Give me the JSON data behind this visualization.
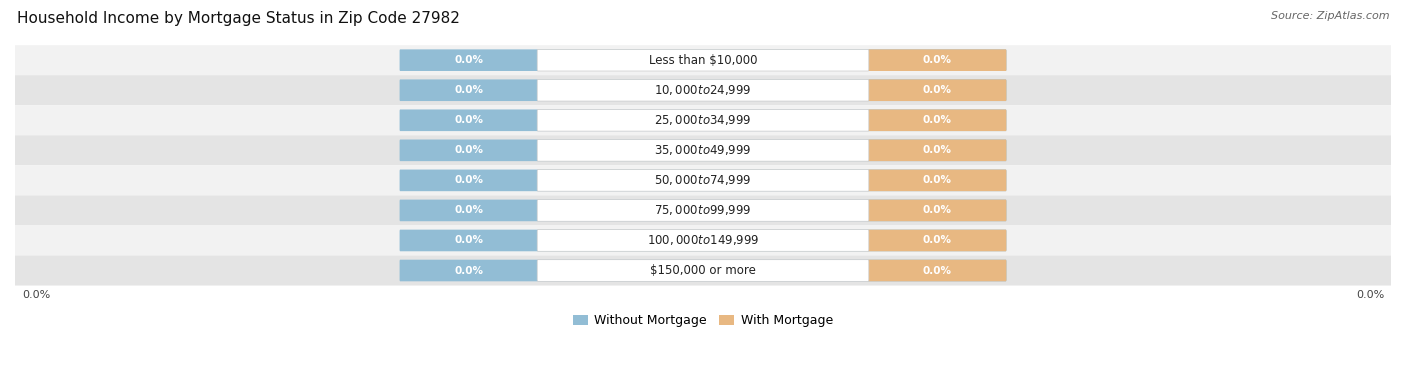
{
  "title": "Household Income by Mortgage Status in Zip Code 27982",
  "source": "Source: ZipAtlas.com",
  "categories": [
    "Less than $10,000",
    "$10,000 to $24,999",
    "$25,000 to $34,999",
    "$35,000 to $49,999",
    "$50,000 to $74,999",
    "$75,000 to $99,999",
    "$100,000 to $149,999",
    "$150,000 or more"
  ],
  "without_mortgage": [
    0.0,
    0.0,
    0.0,
    0.0,
    0.0,
    0.0,
    0.0,
    0.0
  ],
  "with_mortgage": [
    0.0,
    0.0,
    0.0,
    0.0,
    0.0,
    0.0,
    0.0,
    0.0
  ],
  "color_without": "#92BDD5",
  "color_with": "#E8B882",
  "row_bg_light": "#F2F2F2",
  "row_bg_dark": "#E4E4E4",
  "label_color": "#FFFFFF",
  "cat_text_color": "#222222",
  "x_axis_label": "0.0%",
  "legend_without": "Without Mortgage",
  "legend_with": "With Mortgage",
  "title_fontsize": 11,
  "source_fontsize": 8,
  "category_fontsize": 8.5,
  "bar_value_fontsize": 7.5,
  "legend_fontsize": 9,
  "axis_label_fontsize": 8
}
